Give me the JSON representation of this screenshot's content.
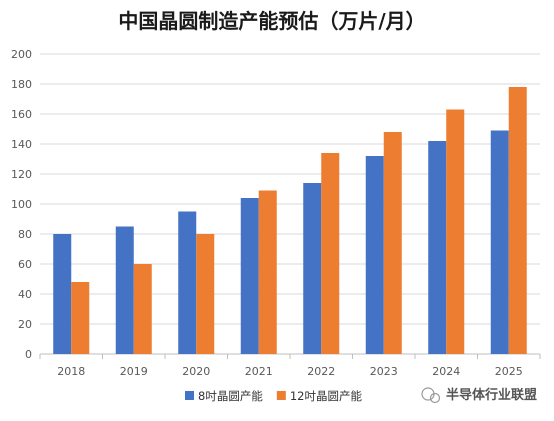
{
  "chart_data": {
    "type": "bar",
    "title": "中国晶圆制造产能预估（万片/月）",
    "categories": [
      "2018",
      "2019",
      "2020",
      "2021",
      "2022",
      "2023",
      "2024",
      "2025"
    ],
    "series": [
      {
        "name": "8吋晶圆产能",
        "color": "#4472C4",
        "values": [
          80,
          85,
          95,
          104,
          114,
          132,
          142,
          149
        ]
      },
      {
        "name": "12吋晶圆产能",
        "color": "#ED7D31",
        "values": [
          48,
          60,
          80,
          109,
          134,
          148,
          163,
          178
        ]
      }
    ],
    "ylim": [
      0,
      200
    ],
    "yticks": [
      0,
      20,
      40,
      60,
      80,
      100,
      120,
      140,
      160,
      180,
      200
    ],
    "grid": true,
    "legend": "bottom-center"
  },
  "watermark": {
    "text": "半导体行业联盟",
    "icon": "wechat-icon"
  }
}
